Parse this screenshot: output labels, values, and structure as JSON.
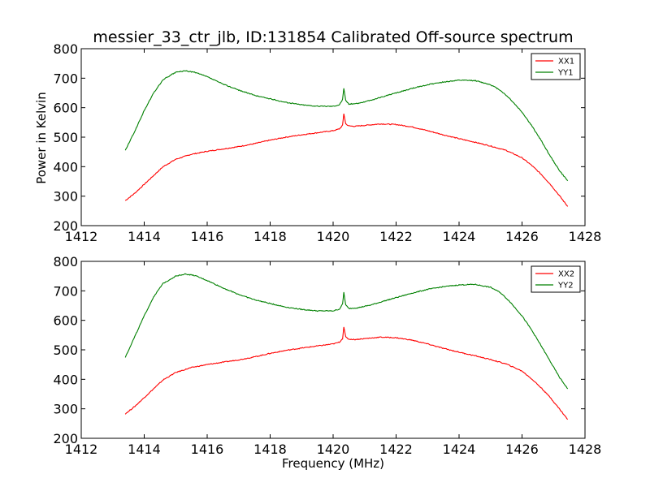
{
  "title": "messier_33_ctr_jlb, ID:131854 Calibrated Off-source spectrum",
  "chart_data": [
    {
      "type": "line",
      "ylabel": "Power in Kelvin",
      "xlabel": "",
      "xlim": [
        1412,
        1428
      ],
      "ylim": [
        200,
        800
      ],
      "xticks": [
        "1412",
        "1414",
        "1416",
        "1418",
        "1420",
        "1422",
        "1424",
        "1426",
        "1428"
      ],
      "yticks": [
        "200",
        "300",
        "400",
        "500",
        "600",
        "700",
        "800"
      ],
      "legend_position": "top-right",
      "series": [
        {
          "name": "XX1",
          "color": "#ff0000",
          "x": [
            1413.4,
            1413.7,
            1414.0,
            1414.3,
            1414.6,
            1415.0,
            1415.5,
            1416.0,
            1416.5,
            1417.0,
            1417.5,
            1418.0,
            1418.5,
            1419.0,
            1419.5,
            1420.0,
            1420.2,
            1420.3,
            1420.34,
            1420.4,
            1420.5,
            1420.7,
            1421.0,
            1421.5,
            1422.0,
            1422.5,
            1423.0,
            1423.5,
            1424.0,
            1424.5,
            1425.0,
            1425.5,
            1426.0,
            1426.3,
            1426.6,
            1426.9,
            1427.2,
            1427.45
          ],
          "y": [
            285,
            310,
            340,
            370,
            400,
            425,
            442,
            452,
            460,
            468,
            478,
            490,
            500,
            508,
            515,
            522,
            528,
            540,
            580,
            545,
            538,
            537,
            540,
            545,
            543,
            535,
            522,
            508,
            495,
            483,
            470,
            455,
            430,
            405,
            375,
            340,
            300,
            265
          ]
        },
        {
          "name": "YY1",
          "color": "#008000",
          "x": [
            1413.4,
            1413.7,
            1414.0,
            1414.3,
            1414.6,
            1415.0,
            1415.3,
            1415.6,
            1416.0,
            1416.5,
            1417.0,
            1417.5,
            1418.0,
            1418.5,
            1419.0,
            1419.5,
            1420.0,
            1420.2,
            1420.3,
            1420.34,
            1420.4,
            1420.5,
            1420.8,
            1421.2,
            1421.6,
            1422.0,
            1422.5,
            1423.0,
            1423.5,
            1424.0,
            1424.5,
            1425.0,
            1425.3,
            1425.6,
            1426.0,
            1426.3,
            1426.6,
            1426.9,
            1427.2,
            1427.45
          ],
          "y": [
            455,
            520,
            590,
            650,
            695,
            720,
            725,
            720,
            705,
            680,
            660,
            642,
            630,
            618,
            610,
            605,
            605,
            610,
            628,
            665,
            625,
            612,
            615,
            625,
            638,
            650,
            665,
            678,
            687,
            693,
            692,
            678,
            660,
            632,
            585,
            540,
            490,
            435,
            385,
            352
          ]
        }
      ]
    },
    {
      "type": "line",
      "ylabel": "",
      "xlabel": "Frequency (MHz)",
      "xlim": [
        1412,
        1428
      ],
      "ylim": [
        200,
        800
      ],
      "xticks": [
        "1412",
        "1414",
        "1416",
        "1418",
        "1420",
        "1422",
        "1424",
        "1426",
        "1428"
      ],
      "yticks": [
        "200",
        "300",
        "400",
        "500",
        "600",
        "700",
        "800"
      ],
      "legend_position": "top-right",
      "series": [
        {
          "name": "XX2",
          "color": "#ff0000",
          "x": [
            1413.4,
            1413.7,
            1414.0,
            1414.3,
            1414.6,
            1415.0,
            1415.5,
            1416.0,
            1416.5,
            1417.0,
            1417.5,
            1418.0,
            1418.5,
            1419.0,
            1419.5,
            1420.0,
            1420.2,
            1420.3,
            1420.34,
            1420.4,
            1420.5,
            1420.7,
            1421.0,
            1421.5,
            1422.0,
            1422.5,
            1423.0,
            1423.5,
            1424.0,
            1424.5,
            1425.0,
            1425.5,
            1426.0,
            1426.3,
            1426.6,
            1426.9,
            1427.2,
            1427.45
          ],
          "y": [
            283,
            308,
            338,
            368,
            398,
            423,
            440,
            450,
            458,
            466,
            476,
            488,
            498,
            506,
            513,
            520,
            526,
            538,
            578,
            543,
            536,
            535,
            538,
            543,
            541,
            533,
            520,
            505,
            492,
            480,
            467,
            452,
            428,
            402,
            372,
            338,
            298,
            264
          ]
        },
        {
          "name": "YY2",
          "color": "#008000",
          "x": [
            1413.4,
            1413.7,
            1414.0,
            1414.3,
            1414.6,
            1415.0,
            1415.3,
            1415.6,
            1416.0,
            1416.5,
            1417.0,
            1417.5,
            1418.0,
            1418.5,
            1419.0,
            1419.5,
            1420.0,
            1420.2,
            1420.3,
            1420.34,
            1420.4,
            1420.5,
            1420.8,
            1421.2,
            1421.6,
            1422.0,
            1422.5,
            1423.0,
            1423.5,
            1424.0,
            1424.5,
            1425.0,
            1425.3,
            1425.6,
            1426.0,
            1426.3,
            1426.6,
            1426.9,
            1427.2,
            1427.45
          ],
          "y": [
            475,
            545,
            615,
            680,
            725,
            750,
            757,
            752,
            735,
            710,
            688,
            670,
            657,
            645,
            637,
            632,
            632,
            638,
            655,
            695,
            652,
            640,
            643,
            652,
            665,
            677,
            692,
            705,
            714,
            720,
            722,
            712,
            695,
            665,
            615,
            568,
            515,
            460,
            405,
            368
          ]
        }
      ]
    }
  ]
}
